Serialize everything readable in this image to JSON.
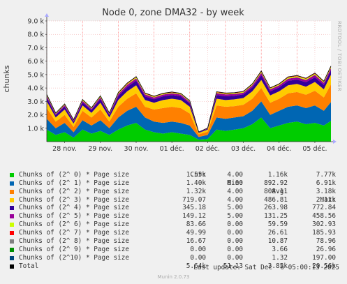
{
  "title": "Node 0, zone DMA32 - by week",
  "ylabel": "chunks",
  "watermark": "RRDTOOL / TOBI OETIKER",
  "footer": "Munin 2.0.73",
  "last_update": "Last update: Sat Dec  6 05:00:13 2025",
  "legend_headers": {
    "cur": "Cur:",
    "min": "Min:",
    "avg": "Avg:",
    "max": "Max:"
  },
  "legend": [
    {
      "name": "Chunks of (2^ 0) * Page size",
      "color": "#00cc00",
      "cur": "1.55k",
      "min": "4.00",
      "avg": "1.16k",
      "max": "7.77k"
    },
    {
      "name": "Chunks of (2^ 1) * Page size",
      "color": "#0066b3",
      "cur": "1.40k",
      "min": "6.00",
      "avg": "892.92",
      "max": "6.91k"
    },
    {
      "name": "Chunks of (2^ 2) * Page size",
      "color": "#ff8000",
      "cur": "1.32k",
      "min": "4.00",
      "avg": "808.11",
      "max": "3.18k"
    },
    {
      "name": "Chunks of (2^ 3) * Page size",
      "color": "#ffcc00",
      "cur": "719.07",
      "min": "4.00",
      "avg": "486.81",
      "max": "2.11k"
    },
    {
      "name": "Chunks of (2^ 4) * Page size",
      "color": "#330099",
      "cur": "345.18",
      "min": "5.00",
      "avg": "263.98",
      "max": "772.84"
    },
    {
      "name": "Chunks of (2^ 5) * Page size",
      "color": "#990099",
      "cur": "149.12",
      "min": "5.00",
      "avg": "131.25",
      "max": "458.56"
    },
    {
      "name": "Chunks of (2^ 6) * Page size",
      "color": "#ccff00",
      "cur": "83.66",
      "min": "0.00",
      "avg": "59.59",
      "max": "302.93"
    },
    {
      "name": "Chunks of (2^ 7) * Page size",
      "color": "#ff0000",
      "cur": "49.99",
      "min": "0.00",
      "avg": "26.61",
      "max": "185.93"
    },
    {
      "name": "Chunks of (2^ 8) * Page size",
      "color": "#808080",
      "cur": "16.67",
      "min": "0.00",
      "avg": "10.87",
      "max": "78.96"
    },
    {
      "name": "Chunks of (2^ 9) * Page size",
      "color": "#008f00",
      "cur": "0.00",
      "min": "0.00",
      "avg": "3.66",
      "max": "26.96"
    },
    {
      "name": "Chunks of (2^10) * Page size",
      "color": "#00487d",
      "cur": "0.00",
      "min": "0.00",
      "avg": "1.32",
      "max": "197.00"
    },
    {
      "name": "Total",
      "color": "#000000",
      "cur": "5.64k",
      "min": "51.13",
      "avg": "3.85k",
      "max": "20.56k"
    }
  ],
  "chart_data": {
    "type": "area",
    "stacked": true,
    "title": "Node 0, zone DMA32 - by week",
    "ylabel": "chunks",
    "xlabel": "",
    "ylim": [
      0,
      9000
    ],
    "ytick_values": [
      1000,
      2000,
      3000,
      4000,
      5000,
      6000,
      7000,
      8000,
      9000
    ],
    "ytick_labels": [
      "1.0 k",
      "2.0 k",
      "3.0 k",
      "4.0 k",
      "5.0 k",
      "6.0 k",
      "7.0 k",
      "8.0 k",
      "9.0 k"
    ],
    "xlim": [
      0,
      7.95
    ],
    "xtick_positions": [
      0.5,
      1.5,
      2.5,
      3.5,
      4.5,
      5.5,
      6.5,
      7.5
    ],
    "xtick_labels": [
      "28 nov.",
      "29 nov.",
      "30 nov.",
      "01 déc.",
      "02 déc.",
      "03 déc.",
      "04 déc.",
      "05 déc."
    ],
    "grid": true,
    "x": [
      0.0,
      0.25,
      0.5,
      0.75,
      1.0,
      1.25,
      1.5,
      1.75,
      2.0,
      2.25,
      2.5,
      2.75,
      3.0,
      3.25,
      3.5,
      3.75,
      4.0,
      4.25,
      4.5,
      4.75,
      5.0,
      5.25,
      5.5,
      5.75,
      6.0,
      6.25,
      6.5,
      6.75,
      7.0,
      7.25,
      7.5,
      7.75,
      7.95
    ],
    "series": [
      {
        "name": "Chunks of (2^ 0) * Page size",
        "color": "#00cc00",
        "values": [
          900,
          500,
          700,
          300,
          900,
          600,
          800,
          500,
          900,
          1200,
          1400,
          900,
          700,
          600,
          700,
          600,
          500,
          150,
          200,
          900,
          800,
          900,
          1000,
          1300,
          1800,
          1000,
          1200,
          1400,
          1500,
          1300,
          1400,
          1200,
          1550
        ]
      },
      {
        "name": "Chunks of (2^ 1) * Page size",
        "color": "#0066b3",
        "values": [
          800,
          500,
          700,
          400,
          700,
          600,
          800,
          500,
          900,
          1100,
          1200,
          900,
          800,
          800,
          800,
          800,
          700,
          200,
          300,
          900,
          900,
          900,
          900,
          1000,
          1200,
          1000,
          1100,
          1200,
          1200,
          1200,
          1300,
          1100,
          1400
        ]
      },
      {
        "name": "Chunks of (2^ 2) * Page size",
        "color": "#ff8000",
        "values": [
          800,
          500,
          600,
          400,
          700,
          600,
          800,
          500,
          800,
          900,
          1000,
          800,
          900,
          1100,
          1100,
          1100,
          900,
          200,
          250,
          900,
          900,
          850,
          850,
          900,
          1000,
          900,
          900,
          1000,
          1000,
          1000,
          1100,
          1000,
          1320
        ]
      },
      {
        "name": "Chunks of (2^ 3) * Page size",
        "color": "#ffcc00",
        "values": [
          500,
          300,
          400,
          250,
          400,
          350,
          500,
          300,
          500,
          550,
          600,
          500,
          500,
          600,
          600,
          600,
          500,
          100,
          150,
          500,
          500,
          500,
          500,
          550,
          600,
          550,
          550,
          600,
          600,
          600,
          650,
          600,
          719
        ]
      },
      {
        "name": "Chunks of (2^ 4) * Page size",
        "color": "#330099",
        "values": [
          280,
          180,
          220,
          150,
          230,
          200,
          280,
          180,
          300,
          330,
          350,
          280,
          260,
          280,
          280,
          280,
          240,
          40,
          60,
          280,
          280,
          270,
          270,
          300,
          350,
          300,
          300,
          330,
          330,
          330,
          350,
          330,
          345
        ]
      },
      {
        "name": "Chunks of (2^ 5) * Page size",
        "color": "#990099",
        "values": [
          140,
          90,
          110,
          80,
          120,
          100,
          140,
          90,
          150,
          160,
          170,
          140,
          130,
          130,
          130,
          130,
          120,
          20,
          30,
          140,
          140,
          130,
          130,
          150,
          180,
          150,
          150,
          170,
          170,
          170,
          180,
          160,
          149
        ]
      },
      {
        "name": "Chunks of (2^ 6) * Page size",
        "color": "#ccff00",
        "values": [
          60,
          40,
          50,
          35,
          55,
          45,
          60,
          40,
          65,
          70,
          75,
          60,
          55,
          55,
          55,
          55,
          50,
          8,
          12,
          60,
          60,
          58,
          58,
          65,
          80,
          65,
          65,
          75,
          75,
          75,
          80,
          70,
          84
        ]
      },
      {
        "name": "Chunks of (2^ 7) * Page size",
        "color": "#ff0000",
        "values": [
          28,
          18,
          22,
          15,
          25,
          20,
          28,
          18,
          30,
          32,
          35,
          28,
          25,
          25,
          25,
          25,
          22,
          4,
          6,
          28,
          28,
          26,
          26,
          30,
          38,
          30,
          30,
          35,
          35,
          35,
          38,
          33,
          50
        ]
      },
      {
        "name": "Chunks of (2^ 8) * Page size",
        "color": "#808080",
        "values": [
          12,
          8,
          10,
          7,
          11,
          9,
          12,
          8,
          13,
          14,
          15,
          12,
          11,
          11,
          11,
          11,
          10,
          2,
          3,
          12,
          12,
          11,
          11,
          13,
          16,
          13,
          13,
          15,
          15,
          15,
          16,
          14,
          17
        ]
      },
      {
        "name": "Chunks of (2^ 9) * Page size",
        "color": "#008f00",
        "values": [
          4,
          3,
          3,
          2,
          4,
          3,
          4,
          3,
          4,
          5,
          5,
          4,
          4,
          4,
          4,
          4,
          3,
          1,
          1,
          4,
          4,
          4,
          4,
          4,
          5,
          4,
          4,
          5,
          5,
          5,
          5,
          4,
          0
        ]
      },
      {
        "name": "Chunks of (2^10) * Page size",
        "color": "#00487d",
        "values": [
          1,
          1,
          1,
          1,
          1,
          1,
          1,
          1,
          2,
          2,
          2,
          1,
          1,
          1,
          1,
          1,
          1,
          0,
          0,
          1,
          1,
          1,
          1,
          2,
          2,
          1,
          1,
          2,
          2,
          1,
          1,
          1,
          0
        ]
      }
    ]
  }
}
